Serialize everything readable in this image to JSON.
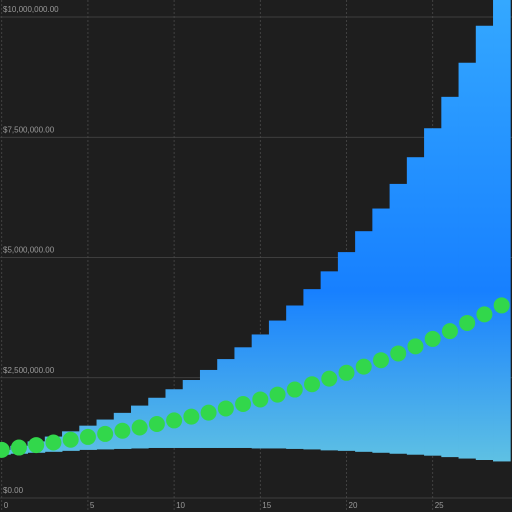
{
  "chart_data": {
    "type": "range-bar",
    "x": [
      0,
      1,
      2,
      3,
      4,
      5,
      6,
      7,
      8,
      9,
      10,
      11,
      12,
      13,
      14,
      15,
      16,
      17,
      18,
      19,
      20,
      21,
      22,
      23,
      24,
      25,
      26,
      27,
      28,
      29
    ],
    "low": [
      900000,
      920000,
      940000,
      960000,
      980000,
      1000000,
      1010000,
      1020000,
      1030000,
      1040000,
      1040000,
      1040000,
      1040000,
      1040000,
      1040000,
      1030000,
      1030000,
      1020000,
      1010000,
      990000,
      980000,
      960000,
      940000,
      920000,
      900000,
      880000,
      850000,
      820000,
      790000,
      760000
    ],
    "high": [
      1000000,
      1085000,
      1177000,
      1277000,
      1386000,
      1504000,
      1631000,
      1770000,
      1921000,
      2084000,
      2261000,
      2453000,
      2662000,
      2888000,
      3133000,
      3400000,
      3689000,
      4002000,
      4342000,
      4712000,
      5112000,
      5547000,
      6018000,
      6530000,
      7085000,
      7687000,
      8340000,
      9049000,
      9818000,
      10653000
    ],
    "median": [
      1000000,
      1049000,
      1100000,
      1154000,
      1211000,
      1270000,
      1332000,
      1398000,
      1466000,
      1538000,
      1613000,
      1692000,
      1775000,
      1862000,
      1954000,
      2049000,
      2150000,
      2255000,
      2366000,
      2482000,
      2603000,
      2731000,
      2865000,
      3005000,
      3152000,
      3307000,
      3469000,
      3639000,
      3817000,
      4004000
    ],
    "median_color": "#32d74b",
    "xlim": [
      -0.1,
      29.6
    ],
    "xticks": [
      0,
      5,
      10,
      15,
      20,
      25
    ],
    "ylim": [
      0,
      10000000
    ],
    "yticks": [
      {
        "value": 0,
        "label": "$0.00"
      },
      {
        "value": 2500000,
        "label": "$2,500,000.00"
      },
      {
        "value": 5000000,
        "label": "$5,000,000.00"
      },
      {
        "value": 7500000,
        "label": "$7,500,000.00"
      },
      {
        "value": 10000000,
        "label": "$10,000,000.00"
      }
    ],
    "grid": true
  }
}
